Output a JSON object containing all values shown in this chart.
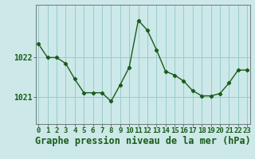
{
  "hours": [
    0,
    1,
    2,
    3,
    4,
    5,
    6,
    7,
    8,
    9,
    10,
    11,
    12,
    13,
    14,
    15,
    16,
    17,
    18,
    19,
    20,
    21,
    22,
    23
  ],
  "pressure": [
    1022.35,
    1022.0,
    1022.0,
    1021.85,
    1021.45,
    1021.1,
    1021.1,
    1021.1,
    1020.88,
    1021.3,
    1021.75,
    1022.95,
    1022.7,
    1022.2,
    1021.65,
    1021.55,
    1021.4,
    1021.15,
    1021.02,
    1021.02,
    1021.08,
    1021.35,
    1021.68,
    1021.68
  ],
  "line_color": "#1a5c1a",
  "marker_color": "#1a5c1a",
  "bg_color": "#cce8e8",
  "grid_color": "#99cccc",
  "axis_color": "#666666",
  "title": "Graphe pression niveau de la mer (hPa)",
  "ylabel_ticks": [
    1021,
    1022
  ],
  "ylim": [
    1020.3,
    1023.35
  ],
  "xlim": [
    -0.3,
    23.3
  ],
  "title_fontsize": 8.5,
  "tick_fontsize": 6.5
}
